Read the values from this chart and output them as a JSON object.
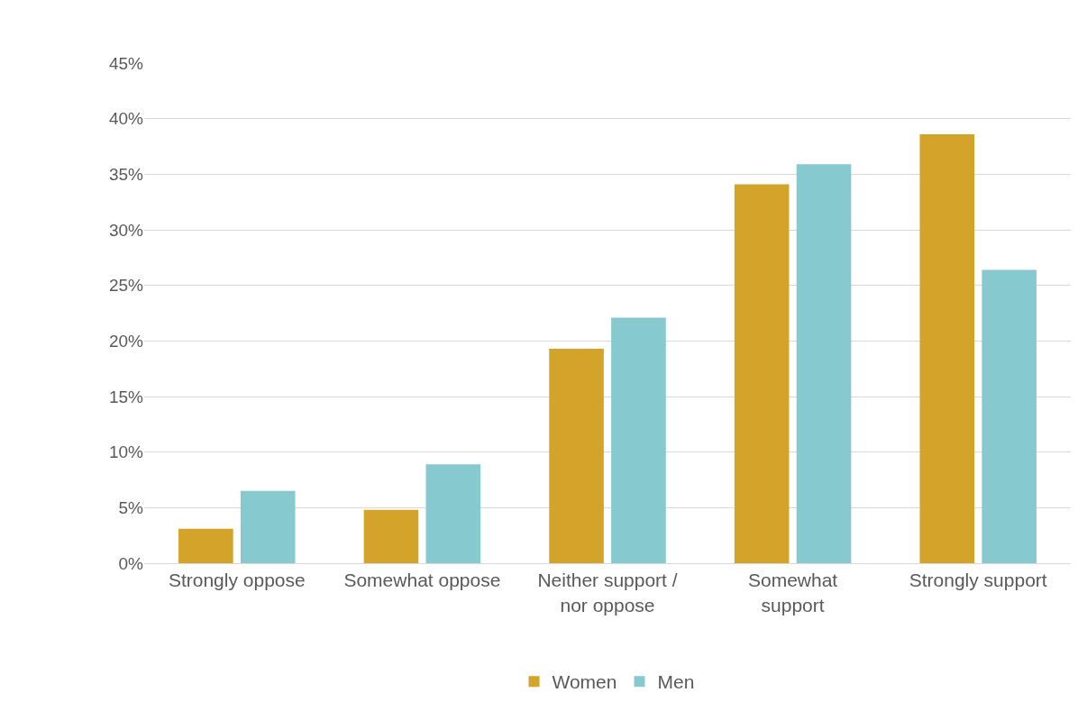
{
  "chart_data": {
    "type": "bar",
    "categories": [
      "Strongly oppose",
      "Somewhat oppose",
      "Neither support /\nnor oppose",
      "Somewhat\nsupport",
      "Strongly support"
    ],
    "series": [
      {
        "name": "Women",
        "color": "#d4a32a",
        "values": [
          3.1,
          4.8,
          19.3,
          34.1,
          38.6
        ]
      },
      {
        "name": "Men",
        "color": "#86cacf",
        "values": [
          6.5,
          8.9,
          22.1,
          35.9,
          26.4
        ]
      }
    ],
    "ylim": [
      0,
      45
    ],
    "yticks": [
      {
        "value": 0,
        "label": "0%"
      },
      {
        "value": 5,
        "label": "5%"
      },
      {
        "value": 10,
        "label": "10%"
      },
      {
        "value": 15,
        "label": "15%"
      },
      {
        "value": 20,
        "label": "20%"
      },
      {
        "value": 25,
        "label": "25%"
      },
      {
        "value": 30,
        "label": "30%"
      },
      {
        "value": 35,
        "label": "35%"
      },
      {
        "value": 40,
        "label": "40%"
      },
      {
        "value": 45,
        "label": "45%"
      }
    ],
    "grid": "y",
    "legend": "bottom"
  }
}
